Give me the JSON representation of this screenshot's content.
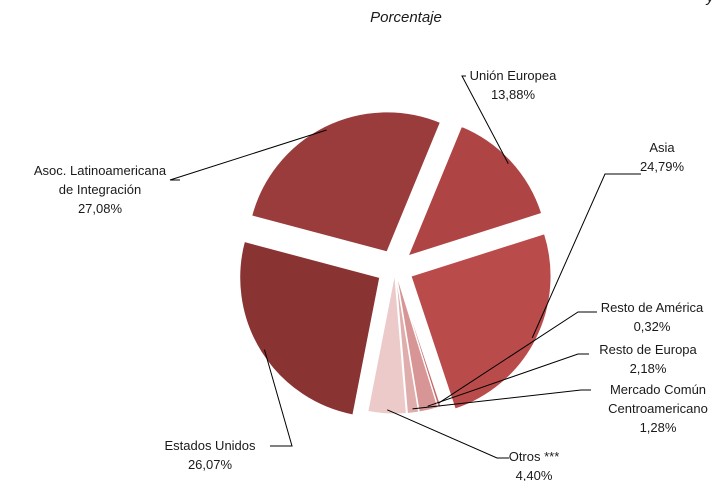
{
  "chart_data": {
    "type": "pie",
    "title": "Porcentaje",
    "title_partial": "y",
    "slices": [
      {
        "name": "Unión Europea",
        "label_lines": [
          "Unión Europea"
        ],
        "value": 13.88,
        "value_label": "13,88%",
        "color": "#ae4444"
      },
      {
        "name": "Asia",
        "label_lines": [
          "Asia"
        ],
        "value": 24.79,
        "value_label": "24,79%",
        "color": "#ba4b4b"
      },
      {
        "name": "Resto de América",
        "label_lines": [
          "Resto de América"
        ],
        "value": 0.32,
        "value_label": "0,32%",
        "color": "#c86666"
      },
      {
        "name": "Resto de Europa",
        "label_lines": [
          "Resto de Europa"
        ],
        "value": 2.18,
        "value_label": "2,18%",
        "color": "#d79595"
      },
      {
        "name": "Mercado Común Centroamericano",
        "label_lines": [
          "Mercado Común",
          "Centroamericano"
        ],
        "value": 1.28,
        "value_label": "1,28%",
        "color": "#e0adad"
      },
      {
        "name": "Otros ***",
        "label_lines": [
          "Otros ***"
        ],
        "value": 4.4,
        "value_label": "4,40%",
        "color": "#eccaca"
      },
      {
        "name": "Estados Unidos",
        "label_lines": [
          "Estados Unidos"
        ],
        "value": 26.07,
        "value_label": "26,07%",
        "color": "#8a3333"
      },
      {
        "name": "Asoc. Latinoamericana de Integración",
        "label_lines": [
          "Asoc. Latinoamericana",
          "de Integración"
        ],
        "value": 27.08,
        "value_label": "27,08%",
        "color": "#9a3c3c"
      }
    ]
  }
}
